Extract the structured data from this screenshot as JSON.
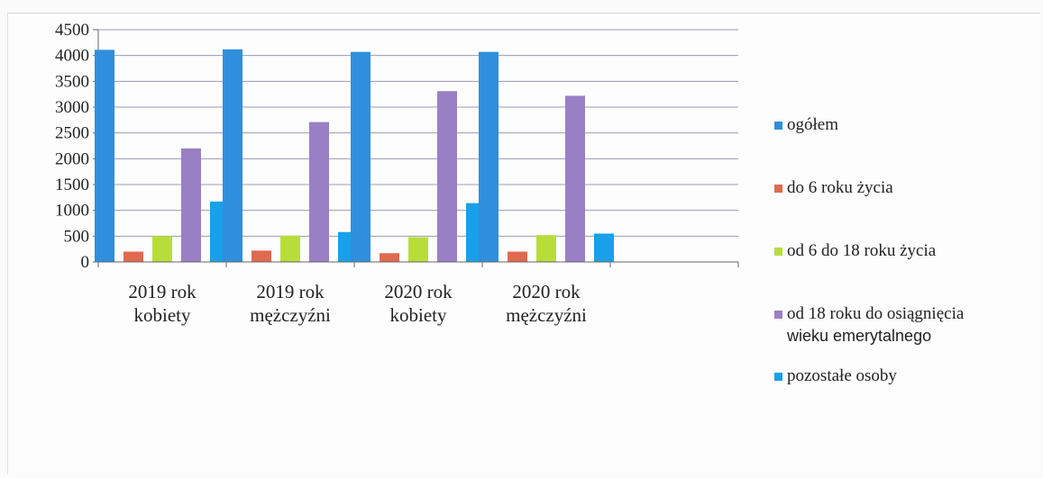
{
  "chart_data": {
    "type": "bar",
    "categories": [
      [
        "2019 rok",
        "kobiety"
      ],
      [
        "2019 rok",
        "mężczyźni"
      ],
      [
        "2020 rok",
        "kobiety"
      ],
      [
        "2020 rok",
        "mężczyźni"
      ],
      [
        "",
        ""
      ]
    ],
    "series": [
      {
        "name": "ogółem",
        "color": "#2f8fdc",
        "values": [
          4110,
          4120,
          4070,
          4070,
          null
        ]
      },
      {
        "name": "do 6 roku życia",
        "color": "#e06a4e",
        "values": [
          200,
          220,
          170,
          200,
          null
        ]
      },
      {
        "name": "od 6 do 18 roku życia",
        "color": "#b8dd3a",
        "values": [
          500,
          510,
          480,
          520,
          null
        ]
      },
      {
        "name": "od 18 roku do osiągnięcia wieku emerytalnego",
        "color": "#9b7fc4",
        "values": [
          2200,
          2710,
          3310,
          3220,
          null
        ]
      },
      {
        "name": "pozostałe osoby",
        "color": "#1aa0e8",
        "values": [
          1170,
          580,
          1140,
          550,
          null
        ]
      }
    ],
    "legend_lines": [
      [
        "ogółem"
      ],
      [
        "do 6 roku życia"
      ],
      [
        "od 6 do 18 roku życia"
      ],
      [
        "od 18 roku do osiągnięcia",
        "wieku emerytalnego"
      ],
      [
        "pozostałe osoby"
      ]
    ],
    "y_ticks": [
      "0",
      "500",
      "1000",
      "1500",
      "2000",
      "2500",
      "3000",
      "3500",
      "4000",
      "4500"
    ],
    "ylim": [
      0,
      4500
    ],
    "grid": true,
    "legend_position": "right"
  }
}
